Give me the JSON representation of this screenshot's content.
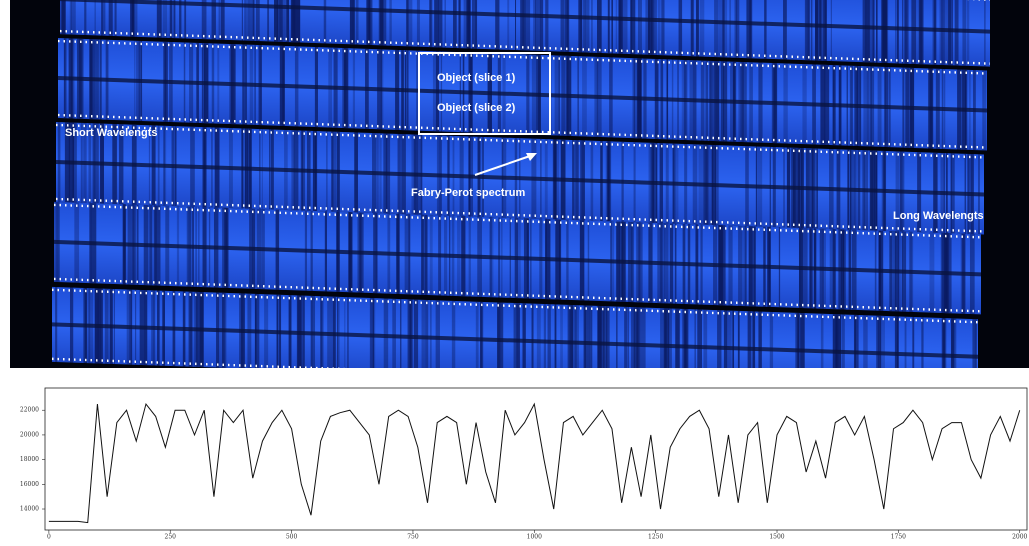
{
  "image": {
    "labels": {
      "short": "Short Wavelengts",
      "slice1": "Object (slice 1)",
      "slice2": "Object (slice 2)",
      "fabry": "Fabry-Perot spectrum",
      "long": "Long Wavelengts"
    }
  },
  "chart_data": {
    "type": "line",
    "x": [
      0,
      20,
      40,
      60,
      80,
      100,
      120,
      140,
      160,
      180,
      200,
      220,
      240,
      260,
      280,
      300,
      320,
      340,
      360,
      380,
      400,
      420,
      440,
      460,
      480,
      500,
      520,
      540,
      560,
      580,
      600,
      620,
      640,
      660,
      680,
      700,
      720,
      740,
      760,
      780,
      800,
      820,
      840,
      860,
      880,
      900,
      920,
      940,
      960,
      980,
      1000,
      1020,
      1040,
      1060,
      1080,
      1100,
      1120,
      1140,
      1160,
      1180,
      1200,
      1220,
      1240,
      1260,
      1280,
      1300,
      1320,
      1340,
      1360,
      1380,
      1400,
      1420,
      1440,
      1460,
      1480,
      1500,
      1520,
      1540,
      1560,
      1580,
      1600,
      1620,
      1640,
      1660,
      1680,
      1700,
      1720,
      1740,
      1760,
      1780,
      1800,
      1820,
      1840,
      1860,
      1880,
      1900,
      1920,
      1940,
      1960,
      1980,
      2000
    ],
    "series": [
      {
        "color": "#111111",
        "values": [
          13000,
          13000,
          13000,
          13000,
          12900,
          22500,
          15000,
          21000,
          22000,
          19500,
          22500,
          21500,
          19000,
          22000,
          22000,
          20000,
          22000,
          15000,
          22000,
          21000,
          22000,
          16500,
          19500,
          21000,
          22000,
          20500,
          16000,
          13500,
          19500,
          21500,
          21800,
          22000,
          21000,
          20000,
          16000,
          21500,
          22000,
          21500,
          19000,
          14500,
          21000,
          21500,
          21000,
          16000,
          21000,
          17000,
          14500,
          22000,
          20000,
          21000,
          22500,
          18000,
          14000,
          21000,
          21500,
          20000,
          21000,
          22000,
          20500,
          14500,
          19000,
          15000,
          20000,
          14000,
          19000,
          20500,
          21500,
          22000,
          20500,
          15000,
          20000,
          14500,
          20000,
          21000,
          14500,
          20000,
          21500,
          21000,
          17000,
          19500,
          16500,
          21000,
          21500,
          20000,
          21500,
          18000,
          14000,
          20500,
          21000,
          22000,
          21000,
          18000,
          20500,
          21000,
          21000,
          18000,
          16500,
          20000,
          21500,
          19500,
          22000
        ]
      }
    ],
    "xlim": [
      -8,
      2015
    ],
    "ylim": [
      12300,
      23800
    ],
    "xticks": [
      0,
      250,
      500,
      750,
      1000,
      1250,
      1500,
      1750,
      2000
    ],
    "yticks": [
      14000,
      16000,
      18000,
      20000,
      22000
    ]
  }
}
